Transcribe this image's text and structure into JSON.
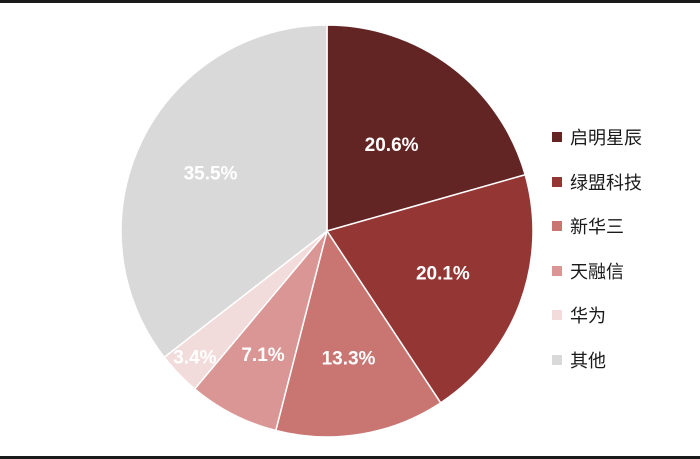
{
  "chart_data": {
    "type": "pie",
    "title": "",
    "series": [
      {
        "name": "启明星辰",
        "value": 20.6,
        "label": "20.6%",
        "color": "#632523"
      },
      {
        "name": "绿盟科技",
        "value": 20.1,
        "label": "20.1%",
        "color": "#943634"
      },
      {
        "name": "新华三",
        "value": 13.3,
        "label": "13.3%",
        "color": "#c97572"
      },
      {
        "name": "天融信",
        "value": 7.1,
        "label": "7.1%",
        "color": "#d99694"
      },
      {
        "name": "华为",
        "value": 3.4,
        "label": "3.4%",
        "color": "#f2dcdb"
      },
      {
        "name": "其他",
        "value": 35.5,
        "label": "35.5%",
        "color": "#d9d9d9"
      }
    ],
    "legend_position": "right",
    "start_angle": "12 o'clock",
    "direction": "clockwise"
  }
}
